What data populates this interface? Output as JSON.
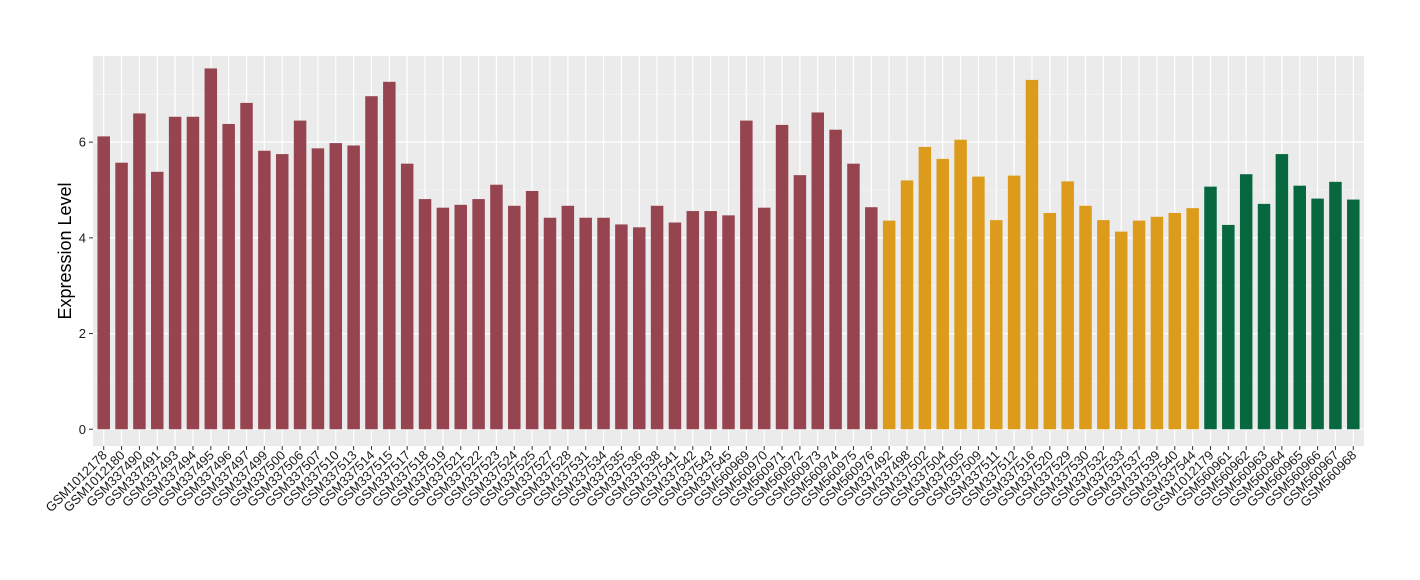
{
  "colors": {
    "panel": "#ebebeb",
    "grid_major": "#ffffff",
    "grid_minor": "#f5f5f5",
    "group_1": "#964450",
    "group_2": "#dc9b1b",
    "group_3": "#07683f",
    "tick_text": "#1a1a1a",
    "tick_mark": "#333333"
  },
  "chart_data": {
    "type": "bar",
    "title": "",
    "xlabel": "",
    "ylabel": "Expression Level",
    "ylim": [
      -0.35,
      7.8
    ],
    "yticks": [
      0,
      2,
      4,
      6
    ],
    "ytick_labels": [
      "0",
      "2",
      "4",
      "6"
    ],
    "grid": true,
    "legend": "none",
    "categories": [
      "GSM1012178",
      "GSM1012180",
      "GSM337490",
      "GSM337491",
      "GSM337493",
      "GSM337494",
      "GSM337495",
      "GSM337496",
      "GSM337497",
      "GSM337499",
      "GSM337500",
      "GSM337506",
      "GSM337507",
      "GSM337510",
      "GSM337513",
      "GSM337514",
      "GSM337515",
      "GSM337517",
      "GSM337518",
      "GSM337519",
      "GSM337521",
      "GSM337522",
      "GSM337523",
      "GSM337524",
      "GSM337525",
      "GSM337527",
      "GSM337528",
      "GSM337531",
      "GSM337534",
      "GSM337535",
      "GSM337536",
      "GSM337538",
      "GSM337541",
      "GSM337542",
      "GSM337543",
      "GSM337545",
      "GSM560969",
      "GSM560970",
      "GSM560971",
      "GSM560972",
      "GSM560973",
      "GSM560974",
      "GSM560975",
      "GSM560976",
      "GSM337492",
      "GSM337498",
      "GSM337502",
      "GSM337504",
      "GSM337505",
      "GSM337509",
      "GSM337511",
      "GSM337512",
      "GSM337516",
      "GSM337520",
      "GSM337529",
      "GSM337530",
      "GSM337532",
      "GSM337533",
      "GSM337537",
      "GSM337539",
      "GSM337540",
      "GSM337544",
      "GSM1012179",
      "GSM560961",
      "GSM560962",
      "GSM560963",
      "GSM560964",
      "GSM560965",
      "GSM560966",
      "GSM560967",
      "GSM560968"
    ],
    "values": [
      6.12,
      5.57,
      6.6,
      5.38,
      6.53,
      6.53,
      7.54,
      6.38,
      6.82,
      5.82,
      5.75,
      6.45,
      5.87,
      5.98,
      5.93,
      6.96,
      7.26,
      5.55,
      4.81,
      4.63,
      4.69,
      4.81,
      5.11,
      4.67,
      4.98,
      4.42,
      4.67,
      4.42,
      4.42,
      4.28,
      4.22,
      4.67,
      4.32,
      4.56,
      4.56,
      4.47,
      6.45,
      4.63,
      6.36,
      5.31,
      6.62,
      6.26,
      5.55,
      4.64,
      4.36,
      5.2,
      5.9,
      5.65,
      6.05,
      5.28,
      4.37,
      5.3,
      7.3,
      4.52,
      5.18,
      4.67,
      4.37,
      4.13,
      4.36,
      4.44,
      4.52,
      4.62,
      5.07,
      4.27,
      5.33,
      4.71,
      5.75,
      5.09,
      4.82,
      5.17,
      4.8
    ],
    "groups": [
      1,
      1,
      1,
      1,
      1,
      1,
      1,
      1,
      1,
      1,
      1,
      1,
      1,
      1,
      1,
      1,
      1,
      1,
      1,
      1,
      1,
      1,
      1,
      1,
      1,
      1,
      1,
      1,
      1,
      1,
      1,
      1,
      1,
      1,
      1,
      1,
      1,
      1,
      1,
      1,
      1,
      1,
      1,
      1,
      2,
      2,
      2,
      2,
      2,
      2,
      2,
      2,
      2,
      2,
      2,
      2,
      2,
      2,
      2,
      2,
      2,
      2,
      3,
      3,
      3,
      3,
      3,
      3,
      3,
      3,
      3
    ]
  }
}
